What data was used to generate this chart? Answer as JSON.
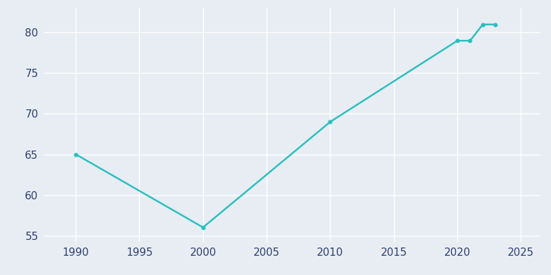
{
  "years": [
    1990,
    2000,
    2010,
    2020,
    2021,
    2022,
    2023
  ],
  "population": [
    65,
    56,
    69,
    79,
    79,
    81,
    81
  ],
  "line_color": "#2abfbf",
  "marker": "o",
  "marker_size": 3.5,
  "line_width": 1.8,
  "xlim": [
    1987.5,
    2026.5
  ],
  "ylim": [
    54.2,
    83.0
  ],
  "xticks": [
    1990,
    1995,
    2000,
    2005,
    2010,
    2015,
    2020,
    2025
  ],
  "yticks": [
    55,
    60,
    65,
    70,
    75,
    80
  ],
  "background_color": "#e8edf4",
  "grid_color": "#ffffff",
  "tick_color": "#2d3f6e",
  "tick_fontsize": 11
}
